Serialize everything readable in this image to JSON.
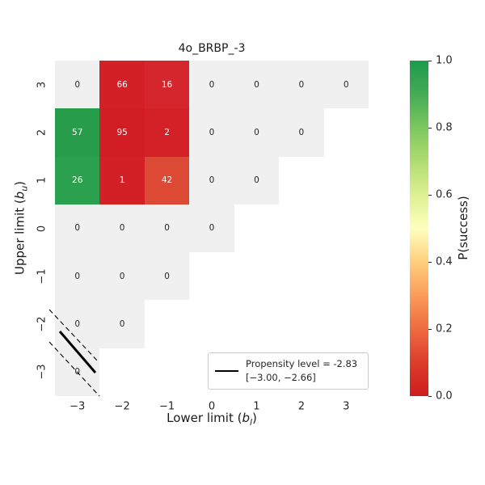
{
  "title": "4o_BRBP_-3",
  "axes": {
    "xlabel": {
      "pre": "Lower limit (",
      "var": "b",
      "sub": "l",
      "post": ")"
    },
    "ylabel": {
      "pre": "Upper limit (",
      "var": "b",
      "sub": "u",
      "post": ")"
    },
    "x_ticks": [
      "−3",
      "−2",
      "−1",
      "0",
      "1",
      "2",
      "3"
    ],
    "y_ticks": [
      "3",
      "2",
      "1",
      "0",
      "−1",
      "−2",
      "−3"
    ]
  },
  "colorbar": {
    "label": "P(success)",
    "ticks": [
      "1.0",
      "0.8",
      "0.6",
      "0.4",
      "0.2",
      "0.0"
    ],
    "range": [
      0.0,
      1.0
    ],
    "gradient": [
      "#cf1c1f",
      "#dc3d2b",
      "#ef6a41",
      "#fb9c58",
      "#fecf7e",
      "#feffbe",
      "#ddf092",
      "#b0dc70",
      "#7cc75e",
      "#45ab55",
      "#1d9a4d"
    ]
  },
  "legend": {
    "line1": "Propensity level = -2.83",
    "line2": "[−3.00, −2.66]"
  },
  "chart_data": {
    "type": "heatmap",
    "title": "4o_BRBP_-3",
    "xlabel": "Lower limit (b_l)",
    "ylabel": "Upper limit (b_u)",
    "x_values": [
      -3,
      -2,
      -1,
      0,
      1,
      2,
      3
    ],
    "y_values": [
      3,
      2,
      1,
      0,
      -1,
      -2,
      -3
    ],
    "colormap": "RdYlGn",
    "colorbar_label": "P(success)",
    "colorbar_range": [
      0.0,
      1.0
    ],
    "empty_cell_color": "#f0f0f0",
    "overlay": {
      "propensity_level": -2.83,
      "interval": [
        -3.0,
        -2.66
      ]
    },
    "cells": [
      [
        {
          "count": "0",
          "p_estimate": null,
          "color": "#f0f0f0",
          "text_color": "#262626"
        },
        {
          "count": "66",
          "p_estimate": 0.02,
          "color": "#d32026",
          "text_color": "#ffffff"
        },
        {
          "count": "16",
          "p_estimate": 0.04,
          "color": "#d4262c",
          "text_color": "#ffffff"
        },
        {
          "count": "0",
          "p_estimate": null,
          "color": "#f0f0f0",
          "text_color": "#262626"
        },
        {
          "count": "0",
          "p_estimate": null,
          "color": "#f0f0f0",
          "text_color": "#262626"
        },
        {
          "count": "0",
          "p_estimate": null,
          "color": "#f0f0f0",
          "text_color": "#262626"
        },
        {
          "count": "0",
          "p_estimate": null,
          "color": "#f0f0f0",
          "text_color": "#262626"
        }
      ],
      [
        {
          "count": "57",
          "p_estimate": 0.87,
          "color": "#279d4b",
          "text_color": "#ffffff"
        },
        {
          "count": "95",
          "p_estimate": 0.01,
          "color": "#d21d25",
          "text_color": "#ffffff"
        },
        {
          "count": "2",
          "p_estimate": 0.02,
          "color": "#d32127",
          "text_color": "#ffffff"
        },
        {
          "count": "0",
          "p_estimate": null,
          "color": "#f0f0f0",
          "text_color": "#262626"
        },
        {
          "count": "0",
          "p_estimate": null,
          "color": "#f0f0f0",
          "text_color": "#262626"
        },
        {
          "count": "0",
          "p_estimate": null,
          "color": "#f0f0f0",
          "text_color": "#262626"
        },
        null
      ],
      [
        {
          "count": "26",
          "p_estimate": 0.86,
          "color": "#2ba04f",
          "text_color": "#ffffff"
        },
        {
          "count": "1",
          "p_estimate": 0.02,
          "color": "#d32026",
          "text_color": "#ffffff"
        },
        {
          "count": "42",
          "p_estimate": 0.12,
          "color": "#dc4a36",
          "text_color": "#ffffff"
        },
        {
          "count": "0",
          "p_estimate": null,
          "color": "#f0f0f0",
          "text_color": "#262626"
        },
        {
          "count": "0",
          "p_estimate": null,
          "color": "#f0f0f0",
          "text_color": "#262626"
        },
        null,
        null
      ],
      [
        {
          "count": "0",
          "p_estimate": null,
          "color": "#f0f0f0",
          "text_color": "#262626"
        },
        {
          "count": "0",
          "p_estimate": null,
          "color": "#f0f0f0",
          "text_color": "#262626"
        },
        {
          "count": "0",
          "p_estimate": null,
          "color": "#f0f0f0",
          "text_color": "#262626"
        },
        {
          "count": "0",
          "p_estimate": null,
          "color": "#f0f0f0",
          "text_color": "#262626"
        },
        null,
        null,
        null
      ],
      [
        {
          "count": "0",
          "p_estimate": null,
          "color": "#f0f0f0",
          "text_color": "#262626"
        },
        {
          "count": "0",
          "p_estimate": null,
          "color": "#f0f0f0",
          "text_color": "#262626"
        },
        {
          "count": "0",
          "p_estimate": null,
          "color": "#f0f0f0",
          "text_color": "#262626"
        },
        null,
        null,
        null,
        null
      ],
      [
        {
          "count": "0",
          "p_estimate": null,
          "color": "#f0f0f0",
          "text_color": "#262626"
        },
        {
          "count": "0",
          "p_estimate": null,
          "color": "#f0f0f0",
          "text_color": "#262626"
        },
        null,
        null,
        null,
        null,
        null
      ],
      [
        {
          "count": "0",
          "p_estimate": null,
          "color": "#f0f0f0",
          "text_color": "#262626"
        },
        null,
        null,
        null,
        null,
        null,
        null
      ]
    ]
  }
}
